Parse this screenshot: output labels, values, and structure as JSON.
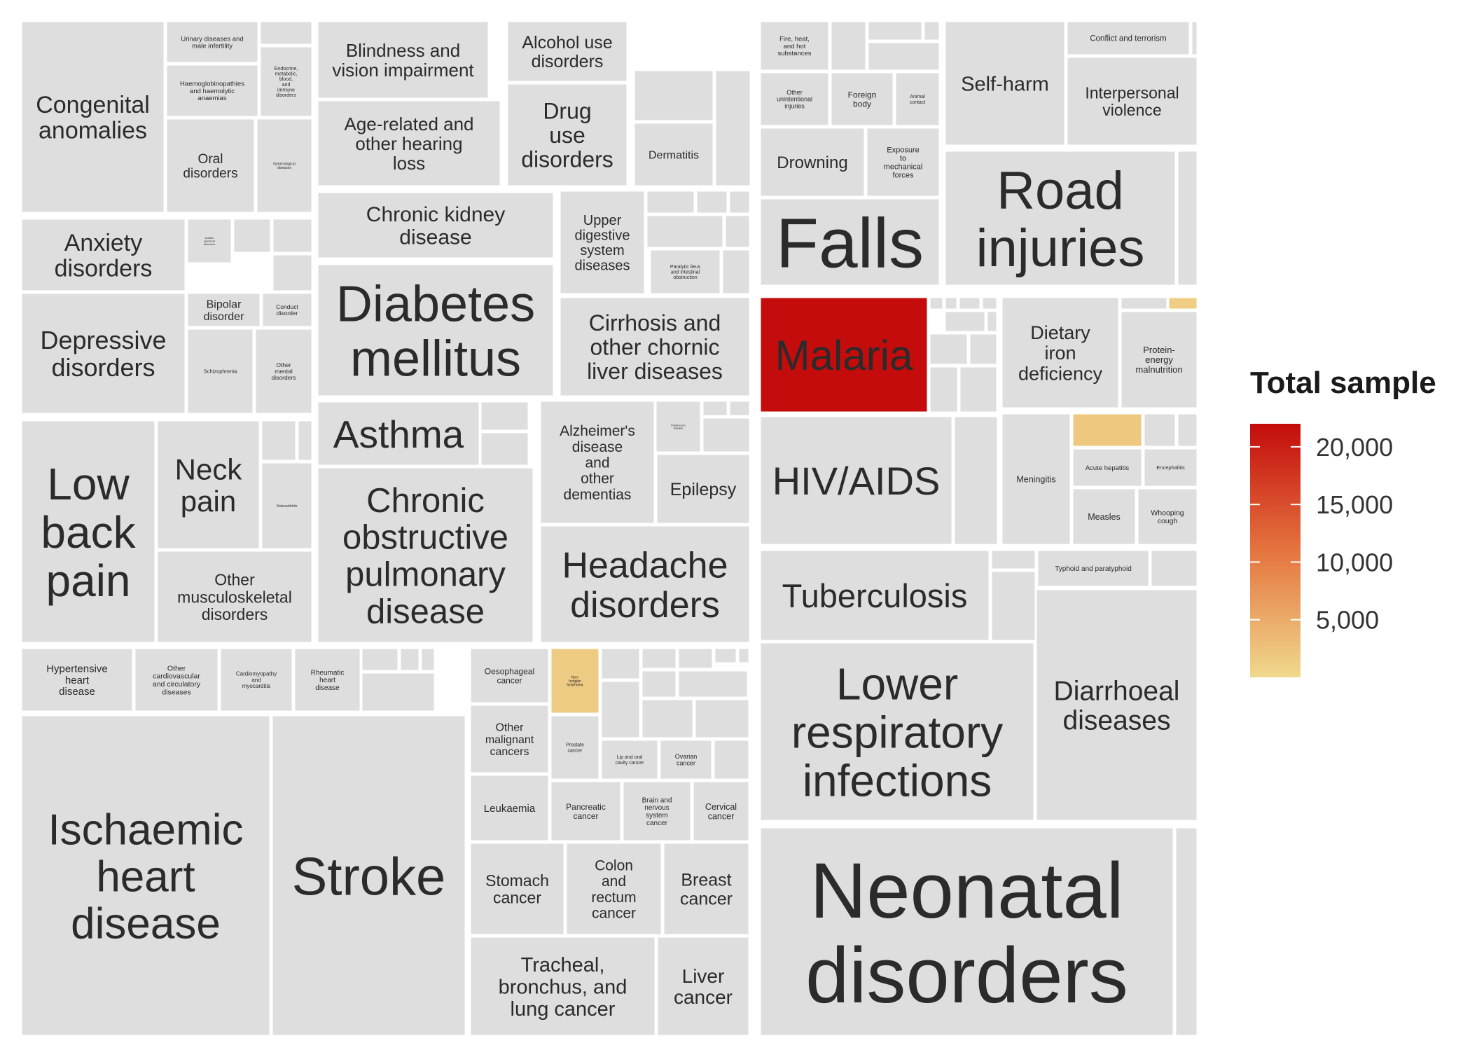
{
  "chart_data": {
    "type": "treemap",
    "color_scale": {
      "title": "Total sample",
      "min": 0,
      "max": 22000,
      "low_color": "#f0d98c",
      "mid_color": "#e4743f",
      "high_color": "#c40c0c",
      "ticks": [
        "5,000",
        "10,000",
        "15,000",
        "20,000"
      ],
      "tick_values": [
        5000,
        10000,
        15000,
        20000
      ]
    },
    "default_fill": "#dedede",
    "cells": [
      {
        "label": "Congenital anomalies",
        "value": 0
      },
      {
        "label": "Urinary diseases and male infertility",
        "value": 0
      },
      {
        "label": "Haemoglobinopathies and haemolytic anaemias",
        "value": 0
      },
      {
        "label": "Endocrine, metabolic, blood, and immune disorders",
        "value": 0
      },
      {
        "label": "Oral disorders",
        "value": 0
      },
      {
        "label": "Gynecological diseases",
        "value": 0
      },
      {
        "label": "Blindness and vision impairment",
        "value": 0
      },
      {
        "label": "Age-related and other hearing loss",
        "value": 0
      },
      {
        "label": "Alcohol use disorders",
        "value": 0
      },
      {
        "label": "Drug use disorders",
        "value": 0
      },
      {
        "label": "Dermatitis",
        "value": 0
      },
      {
        "label": "Anxiety disorders",
        "value": 0
      },
      {
        "label": "Autism spectrum disorders",
        "value": 0
      },
      {
        "label": "Bipolar disorder",
        "value": 0
      },
      {
        "label": "Conduct disorder",
        "value": 0
      },
      {
        "label": "Depressive disorders",
        "value": 0
      },
      {
        "label": "Schizophrenia",
        "value": 0
      },
      {
        "label": "Other mental disorders",
        "value": 0
      },
      {
        "label": "Chronic kidney disease",
        "value": 0
      },
      {
        "label": "Diabetes mellitus",
        "value": 0
      },
      {
        "label": "Upper digestive system diseases",
        "value": 0
      },
      {
        "label": "Paralytic ileus and intestinal obstruction",
        "value": 0
      },
      {
        "label": "Cirrhosis and other chornic liver diseases",
        "value": 0
      },
      {
        "label": "Low back pain",
        "value": 0
      },
      {
        "label": "Neck pain",
        "value": 0
      },
      {
        "label": "Osteoarthritis",
        "value": 0
      },
      {
        "label": "Other musculoskeletal disorders",
        "value": 0
      },
      {
        "label": "Asthma",
        "value": 0
      },
      {
        "label": "Chronic obstructive pulmonary disease",
        "value": 0
      },
      {
        "label": "Alzheimer's disease and other dementias",
        "value": 0
      },
      {
        "label": "Parkinson's disease",
        "value": 0
      },
      {
        "label": "Epilepsy",
        "value": 0
      },
      {
        "label": "Headache disorders",
        "value": 0
      },
      {
        "label": "Hypertensive heart disease",
        "value": 0
      },
      {
        "label": "Other cardiovascular and circulatory diseases",
        "value": 0
      },
      {
        "label": "Cardiomyopathy and myocarditis",
        "value": 0
      },
      {
        "label": "Rheumatic heart disease",
        "value": 0
      },
      {
        "label": "Ischaemic heart disease",
        "value": 0
      },
      {
        "label": "Stroke",
        "value": 0
      },
      {
        "label": "Oesophageal cancer",
        "value": 0
      },
      {
        "label": "Non-hodgkin lymphoma",
        "value": 1500
      },
      {
        "label": "Other malignant cancers",
        "value": 0
      },
      {
        "label": "Prostate cancer",
        "value": 0
      },
      {
        "label": "Lip and oral cavity cancer",
        "value": 0
      },
      {
        "label": "Ovarian cancer",
        "value": 0
      },
      {
        "label": "Leukaemia",
        "value": 0
      },
      {
        "label": "Pancreatic cancer",
        "value": 0
      },
      {
        "label": "Brain and nervous system cancer",
        "value": 0
      },
      {
        "label": "Cervical cancer",
        "value": 0
      },
      {
        "label": "Stomach cancer",
        "value": 0
      },
      {
        "label": "Colon and rectum cancer",
        "value": 0
      },
      {
        "label": "Breast cancer",
        "value": 0
      },
      {
        "label": "Tracheal, bronchus, and lung cancer",
        "value": 0
      },
      {
        "label": "Liver cancer",
        "value": 0
      },
      {
        "label": "Fire, heat, and hot substances",
        "value": 0
      },
      {
        "label": "Other unintentional injuries",
        "value": 0
      },
      {
        "label": "Foreign body",
        "value": 0
      },
      {
        "label": "Animal contact",
        "value": 0
      },
      {
        "label": "Drowning",
        "value": 0
      },
      {
        "label": "Exposure to mechanical forces",
        "value": 0
      },
      {
        "label": "Falls",
        "value": 0
      },
      {
        "label": "Self-harm",
        "value": 0
      },
      {
        "label": "Conflict and terrorism",
        "value": 0
      },
      {
        "label": "Interpersonal violence",
        "value": 0
      },
      {
        "label": "Road injuries",
        "value": 0
      },
      {
        "label": "Malaria",
        "value": 22000
      },
      {
        "label": "Dietary iron deficiency",
        "value": 0
      },
      {
        "label": "Protein-energy malnutrition",
        "value": 0
      },
      {
        "label": "HIV/AIDS",
        "value": 0
      },
      {
        "label": "Meningitis",
        "value": 0
      },
      {
        "label": "Acute hepatitis",
        "value": 0
      },
      {
        "label": "Encephalitis",
        "value": 0
      },
      {
        "label": "Measles",
        "value": 0
      },
      {
        "label": "Whooping cough",
        "value": 0
      },
      {
        "label": "Tuberculosis",
        "value": 0
      },
      {
        "label": "Typhoid and paratyphoid",
        "value": 0
      },
      {
        "label": "Lower respiratory infections",
        "value": 0
      },
      {
        "label": "Diarrhoeal diseases",
        "value": 0
      },
      {
        "label": "Neonatal disorders",
        "value": 0
      }
    ]
  }
}
